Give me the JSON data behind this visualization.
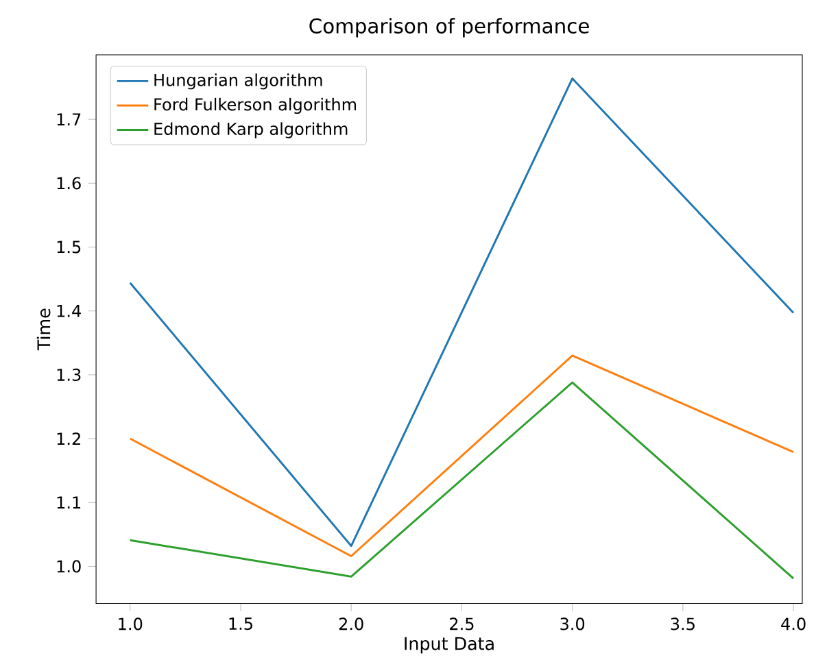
{
  "chart_data": {
    "type": "line",
    "title": "Comparison of performance",
    "xlabel": "Input Data",
    "ylabel": "Time",
    "x": [
      1,
      2,
      3,
      4
    ],
    "series": [
      {
        "name": "Hungarian algorithm",
        "color": "#1f77b4",
        "values": [
          1.444,
          1.032,
          1.764,
          1.397
        ]
      },
      {
        "name": "Ford Fulkerson algorithm",
        "color": "#ff7f0e",
        "values": [
          1.2,
          1.016,
          1.33,
          1.179
        ]
      },
      {
        "name": "Edmond Karp algorithm",
        "color": "#2ca02c",
        "values": [
          1.041,
          0.984,
          1.288,
          0.981
        ]
      }
    ],
    "xlim": [
      0.846,
      4.04
    ],
    "ylim": [
      0.942,
      1.801
    ],
    "xticks": [
      {
        "value": 1.0,
        "label": "1.0"
      },
      {
        "value": 1.5,
        "label": "1.5"
      },
      {
        "value": 2.0,
        "label": "2.0"
      },
      {
        "value": 2.5,
        "label": "2.5"
      },
      {
        "value": 3.0,
        "label": "3.0"
      },
      {
        "value": 3.5,
        "label": "3.5"
      },
      {
        "value": 4.0,
        "label": "4.0"
      }
    ],
    "yticks": [
      {
        "value": 1.0,
        "label": "1.0"
      },
      1.1,
      1.2,
      1.3,
      1.4,
      1.5,
      1.6,
      1.7
    ],
    "legend": "top left",
    "grid": false,
    "marker": "none",
    "line_style": "solid"
  }
}
